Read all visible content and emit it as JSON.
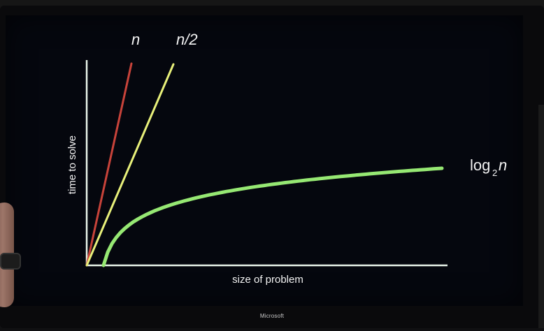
{
  "chart_data": {
    "type": "line",
    "title": "",
    "xlabel": "size of problem",
    "ylabel": "time to solve",
    "series": [
      {
        "name": "n",
        "color": "#c8433a"
      },
      {
        "name": "n/2",
        "color": "#e8f07a"
      },
      {
        "name": "log₂n",
        "color": "#96e873"
      }
    ],
    "log_label_parts": {
      "base": "log",
      "sub": "2",
      "var": "n"
    },
    "grid": false,
    "legend": "labels at line ends"
  },
  "device": {
    "brand": "Microsoft"
  },
  "colors": {
    "axis": "#e9f5ea",
    "background": "#05070e"
  }
}
